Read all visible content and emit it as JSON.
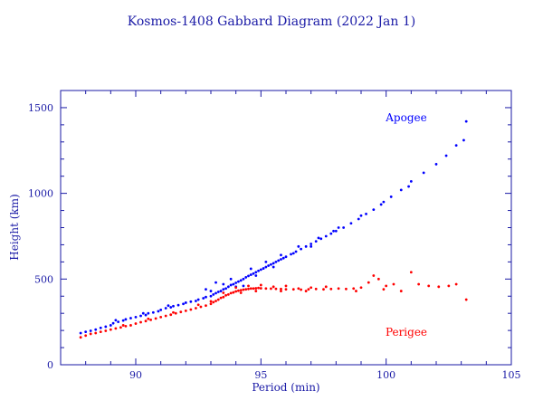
{
  "chart_data": {
    "type": "scatter",
    "title": "Kosmos-1408 Gabbard Diagram (2022 Jan 1)",
    "xlabel": "Period (min)",
    "ylabel": "Height (km)",
    "xlim": [
      87,
      105
    ],
    "ylim": [
      0,
      1600
    ],
    "xticks": [
      90,
      95,
      100,
      105
    ],
    "yticks": [
      0,
      500,
      1000,
      1500
    ],
    "colors": {
      "axis": "#1a1aa6",
      "apogee": "#0000ff",
      "perigee": "#ff0000"
    },
    "annotations": {
      "apogee": "Apogee",
      "perigee": "Perigee"
    },
    "series": [
      {
        "name": "Apogee",
        "color": "#0000ff",
        "points": [
          [
            87.8,
            185
          ],
          [
            88.0,
            192
          ],
          [
            88.2,
            198
          ],
          [
            88.4,
            205
          ],
          [
            88.6,
            215
          ],
          [
            88.8,
            222
          ],
          [
            89.0,
            230
          ],
          [
            89.1,
            242
          ],
          [
            89.3,
            250
          ],
          [
            89.5,
            258
          ],
          [
            89.6,
            265
          ],
          [
            89.8,
            272
          ],
          [
            90.0,
            278
          ],
          [
            90.2,
            285
          ],
          [
            90.4,
            290
          ],
          [
            90.5,
            300
          ],
          [
            90.7,
            305
          ],
          [
            90.9,
            312
          ],
          [
            91.0,
            320
          ],
          [
            91.2,
            330
          ],
          [
            91.4,
            335
          ],
          [
            91.5,
            342
          ],
          [
            91.7,
            348
          ],
          [
            91.9,
            355
          ],
          [
            92.0,
            362
          ],
          [
            92.2,
            368
          ],
          [
            92.4,
            372
          ],
          [
            92.5,
            380
          ],
          [
            92.7,
            388
          ],
          [
            92.8,
            395
          ],
          [
            93.0,
            400
          ],
          [
            93.1,
            410
          ],
          [
            93.2,
            418
          ],
          [
            93.3,
            425
          ],
          [
            93.4,
            430
          ],
          [
            93.5,
            440
          ],
          [
            93.6,
            445
          ],
          [
            93.7,
            455
          ],
          [
            93.8,
            465
          ],
          [
            93.9,
            470
          ],
          [
            94.0,
            478
          ],
          [
            94.1,
            485
          ],
          [
            94.2,
            492
          ],
          [
            94.3,
            500
          ],
          [
            94.4,
            510
          ],
          [
            94.5,
            518
          ],
          [
            94.6,
            525
          ],
          [
            94.7,
            532
          ],
          [
            94.8,
            540
          ],
          [
            94.9,
            548
          ],
          [
            95.0,
            555
          ],
          [
            95.1,
            562
          ],
          [
            95.2,
            570
          ],
          [
            95.3,
            578
          ],
          [
            95.4,
            585
          ],
          [
            95.5,
            592
          ],
          [
            95.6,
            600
          ],
          [
            95.7,
            608
          ],
          [
            95.8,
            615
          ],
          [
            95.9,
            622
          ],
          [
            96.0,
            630
          ],
          [
            96.2,
            645
          ],
          [
            96.4,
            660
          ],
          [
            96.6,
            675
          ],
          [
            96.8,
            690
          ],
          [
            97.0,
            705
          ],
          [
            97.2,
            720
          ],
          [
            97.4,
            735
          ],
          [
            97.6,
            750
          ],
          [
            97.8,
            765
          ],
          [
            98.0,
            780
          ],
          [
            98.3,
            800
          ],
          [
            98.6,
            825
          ],
          [
            98.9,
            850
          ],
          [
            99.2,
            880
          ],
          [
            99.5,
            905
          ],
          [
            99.8,
            935
          ],
          [
            100.2,
            980
          ],
          [
            100.6,
            1020
          ],
          [
            101.0,
            1070
          ],
          [
            101.5,
            1120
          ],
          [
            102.0,
            1170
          ],
          [
            102.4,
            1220
          ],
          [
            102.8,
            1280
          ],
          [
            103.1,
            1310
          ],
          [
            103.2,
            1420
          ],
          [
            93.2,
            480
          ],
          [
            93.5,
            470
          ],
          [
            94.0,
            455
          ],
          [
            94.3,
            460
          ],
          [
            92.8,
            440
          ],
          [
            93.0,
            430
          ],
          [
            93.8,
            500
          ],
          [
            94.6,
            560
          ],
          [
            95.2,
            600
          ],
          [
            95.8,
            640
          ],
          [
            96.5,
            690
          ],
          [
            97.3,
            740
          ],
          [
            98.1,
            800
          ],
          [
            99.0,
            870
          ],
          [
            99.9,
            950
          ],
          [
            100.9,
            1040
          ],
          [
            91.3,
            345
          ],
          [
            90.3,
            300
          ],
          [
            89.2,
            260
          ],
          [
            94.8,
            520
          ],
          [
            95.5,
            570
          ],
          [
            96.3,
            650
          ],
          [
            97.0,
            690
          ],
          [
            97.9,
            780
          ]
        ]
      },
      {
        "name": "Perigee",
        "color": "#ff0000",
        "points": [
          [
            87.8,
            160
          ],
          [
            88.0,
            170
          ],
          [
            88.2,
            180
          ],
          [
            88.4,
            185
          ],
          [
            88.6,
            192
          ],
          [
            88.8,
            198
          ],
          [
            89.0,
            205
          ],
          [
            89.2,
            212
          ],
          [
            89.4,
            218
          ],
          [
            89.6,
            225
          ],
          [
            89.8,
            230
          ],
          [
            90.0,
            240
          ],
          [
            90.2,
            248
          ],
          [
            90.4,
            255
          ],
          [
            90.6,
            262
          ],
          [
            90.8,
            270
          ],
          [
            91.0,
            278
          ],
          [
            91.2,
            285
          ],
          [
            91.4,
            292
          ],
          [
            91.6,
            300
          ],
          [
            91.8,
            308
          ],
          [
            92.0,
            315
          ],
          [
            92.2,
            322
          ],
          [
            92.4,
            330
          ],
          [
            92.6,
            338
          ],
          [
            92.8,
            345
          ],
          [
            93.0,
            355
          ],
          [
            93.1,
            365
          ],
          [
            93.2,
            372
          ],
          [
            93.3,
            380
          ],
          [
            93.4,
            390
          ],
          [
            93.5,
            395
          ],
          [
            93.6,
            405
          ],
          [
            93.7,
            410
          ],
          [
            93.8,
            418
          ],
          [
            93.9,
            422
          ],
          [
            94.0,
            428
          ],
          [
            94.1,
            432
          ],
          [
            94.2,
            435
          ],
          [
            94.3,
            438
          ],
          [
            94.4,
            440
          ],
          [
            94.5,
            442
          ],
          [
            94.6,
            445
          ],
          [
            94.7,
            445
          ],
          [
            94.8,
            446
          ],
          [
            94.9,
            448
          ],
          [
            95.0,
            446
          ],
          [
            95.2,
            445
          ],
          [
            95.4,
            444
          ],
          [
            95.6,
            443
          ],
          [
            95.8,
            442
          ],
          [
            96.0,
            440
          ],
          [
            96.3,
            440
          ],
          [
            96.6,
            438
          ],
          [
            96.9,
            440
          ],
          [
            97.2,
            442
          ],
          [
            97.5,
            440
          ],
          [
            97.8,
            442
          ],
          [
            98.1,
            445
          ],
          [
            98.4,
            442
          ],
          [
            98.7,
            445
          ],
          [
            99.0,
            450
          ],
          [
            99.3,
            480
          ],
          [
            99.5,
            520
          ],
          [
            99.7,
            500
          ],
          [
            100.0,
            460
          ],
          [
            100.3,
            470
          ],
          [
            100.6,
            430
          ],
          [
            101.0,
            540
          ],
          [
            101.3,
            470
          ],
          [
            101.7,
            460
          ],
          [
            102.1,
            455
          ],
          [
            102.5,
            460
          ],
          [
            102.8,
            470
          ],
          [
            103.2,
            380
          ],
          [
            93.5,
            420
          ],
          [
            94.0,
            450
          ],
          [
            94.5,
            460
          ],
          [
            95.0,
            465
          ],
          [
            95.5,
            455
          ],
          [
            96.0,
            460
          ],
          [
            96.5,
            445
          ],
          [
            97.0,
            450
          ],
          [
            92.5,
            350
          ],
          [
            93.0,
            370
          ],
          [
            91.5,
            305
          ],
          [
            90.5,
            268
          ],
          [
            89.5,
            230
          ],
          [
            95.8,
            430
          ],
          [
            96.8,
            430
          ],
          [
            97.6,
            455
          ],
          [
            98.8,
            430
          ],
          [
            99.9,
            440
          ],
          [
            94.2,
            420
          ],
          [
            94.8,
            430
          ]
        ]
      }
    ]
  }
}
